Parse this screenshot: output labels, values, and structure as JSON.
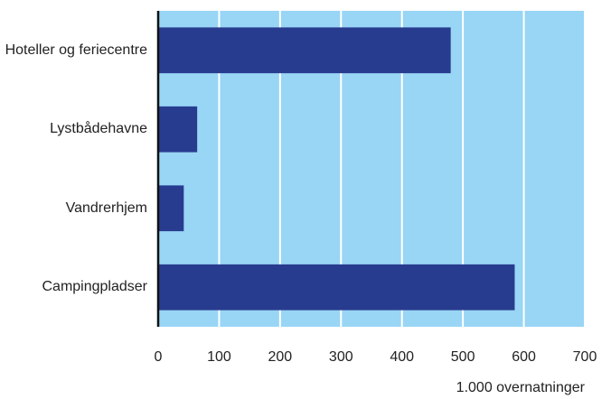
{
  "chart_data": {
    "type": "bar",
    "orientation": "horizontal",
    "categories": [
      "Hoteller og feriecentre",
      "Lystbådehavne",
      "Vandrerhjem",
      "Campingpladser"
    ],
    "values": [
      480,
      64,
      42,
      585
    ],
    "color": "#283c8f",
    "background": "#99d5f5",
    "xlabel": "1.000 overnatninger",
    "xlim": [
      0,
      700
    ],
    "xticks": [
      0,
      100,
      200,
      300,
      400,
      500,
      600,
      700
    ],
    "grid": true
  }
}
